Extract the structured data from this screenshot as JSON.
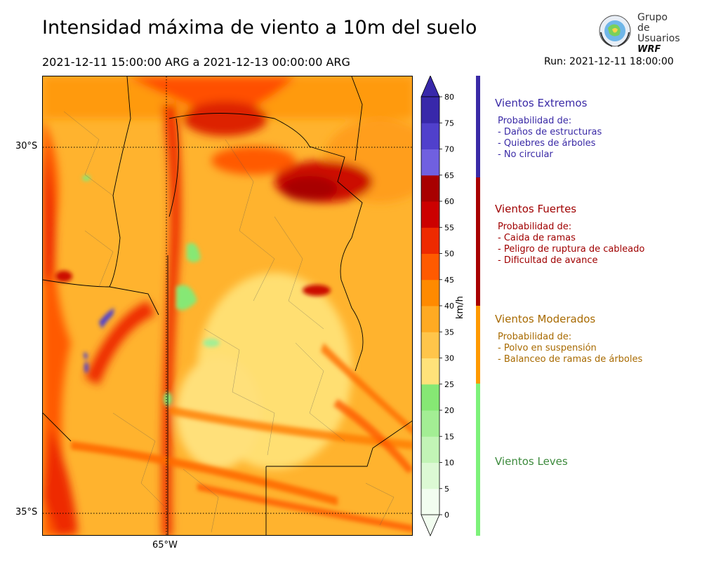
{
  "header": {
    "title": "Intensidad máxima de viento a 10m del suelo",
    "period": "2021-12-11 15:00:00 ARG  a  2021-12-13 00:00:00 ARG",
    "run": "Run: 2021-12-11 18:00:00"
  },
  "logo": {
    "line1": "Grupo de",
    "line2": "Usuarios",
    "line3": "WRF",
    "icon": "globe-laurel-icon"
  },
  "map": {
    "lat_labels": [
      "30°S",
      "35°S"
    ],
    "lon_labels": [
      "65°W"
    ],
    "variable": "max 10m wind speed",
    "region": "central Argentina"
  },
  "colorbar": {
    "unit": "km/h",
    "ticks": [
      "0",
      "5",
      "10",
      "15",
      "20",
      "25",
      "30",
      "35",
      "40",
      "45",
      "50",
      "55",
      "60",
      "65",
      "70",
      "75",
      "80"
    ],
    "colors": [
      "#f2fdf0",
      "#dcf9d4",
      "#c2f4b6",
      "#a3ee94",
      "#86e874",
      "#ffe27a",
      "#ffc54a",
      "#ffaa22",
      "#ff8a00",
      "#ff5a00",
      "#ee2a00",
      "#cc0000",
      "#a80000",
      "#7060e0",
      "#5040cc",
      "#3828aa"
    ]
  },
  "categories": [
    {
      "title": "Vientos Extremos",
      "color": "#3a2aa6",
      "lines": [
        "Probabilidad de:",
        "- Daños de estructuras",
        "- Quiebres de árboles",
        "- No circular"
      ]
    },
    {
      "title": "Vientos Fuertes",
      "color": "#a00000",
      "lines": [
        "Probabilidad de:",
        "- Caida de ramas",
        "- Peligro de ruptura de cableado",
        "- Dificultad de avance"
      ]
    },
    {
      "title": "Vientos Moderados",
      "color": "#a86a00",
      "bar_color": "#ff9a00",
      "lines": [
        "Probabilidad de:",
        "- Polvo en suspensión",
        "- Balanceo de ramas de árboles"
      ]
    },
    {
      "title": "Vientos Leves",
      "color": "#3c8a3c",
      "bar_color": "#7df27a",
      "lines": []
    }
  ]
}
